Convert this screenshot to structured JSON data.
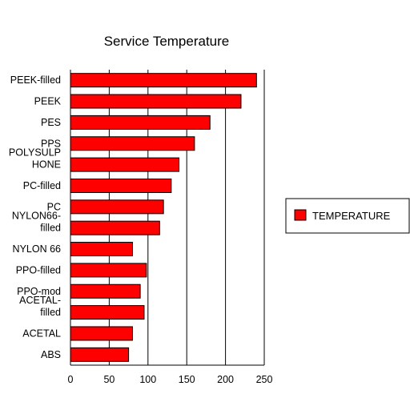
{
  "chart_data": {
    "type": "bar",
    "orientation": "horizontal",
    "title": "Service Temperature",
    "categories": [
      [
        "PEEK-filled"
      ],
      [
        "PEEK"
      ],
      [
        "PES"
      ],
      [
        "PPS"
      ],
      [
        "POLYSULP",
        "HONE"
      ],
      [
        "PC-filled"
      ],
      [
        "PC"
      ],
      [
        "NYLON66-",
        "filled"
      ],
      [
        "NYLON 66"
      ],
      [
        "PPO-filled"
      ],
      [
        "PPO-mod"
      ],
      [
        "ACETAL-",
        "filled"
      ],
      [
        "ACETAL"
      ],
      [
        "ABS"
      ]
    ],
    "series": [
      {
        "name": "TEMPERATURE",
        "color": "#ff0000",
        "values": [
          240,
          220,
          180,
          160,
          140,
          130,
          120,
          115,
          80,
          98,
          90,
          95,
          80,
          75
        ]
      }
    ],
    "xticks": [
      "0",
      "50",
      "100",
      "150",
      "200",
      "250"
    ],
    "xlim": [
      0,
      250
    ],
    "grid": "vertical",
    "legend_position": "right"
  }
}
